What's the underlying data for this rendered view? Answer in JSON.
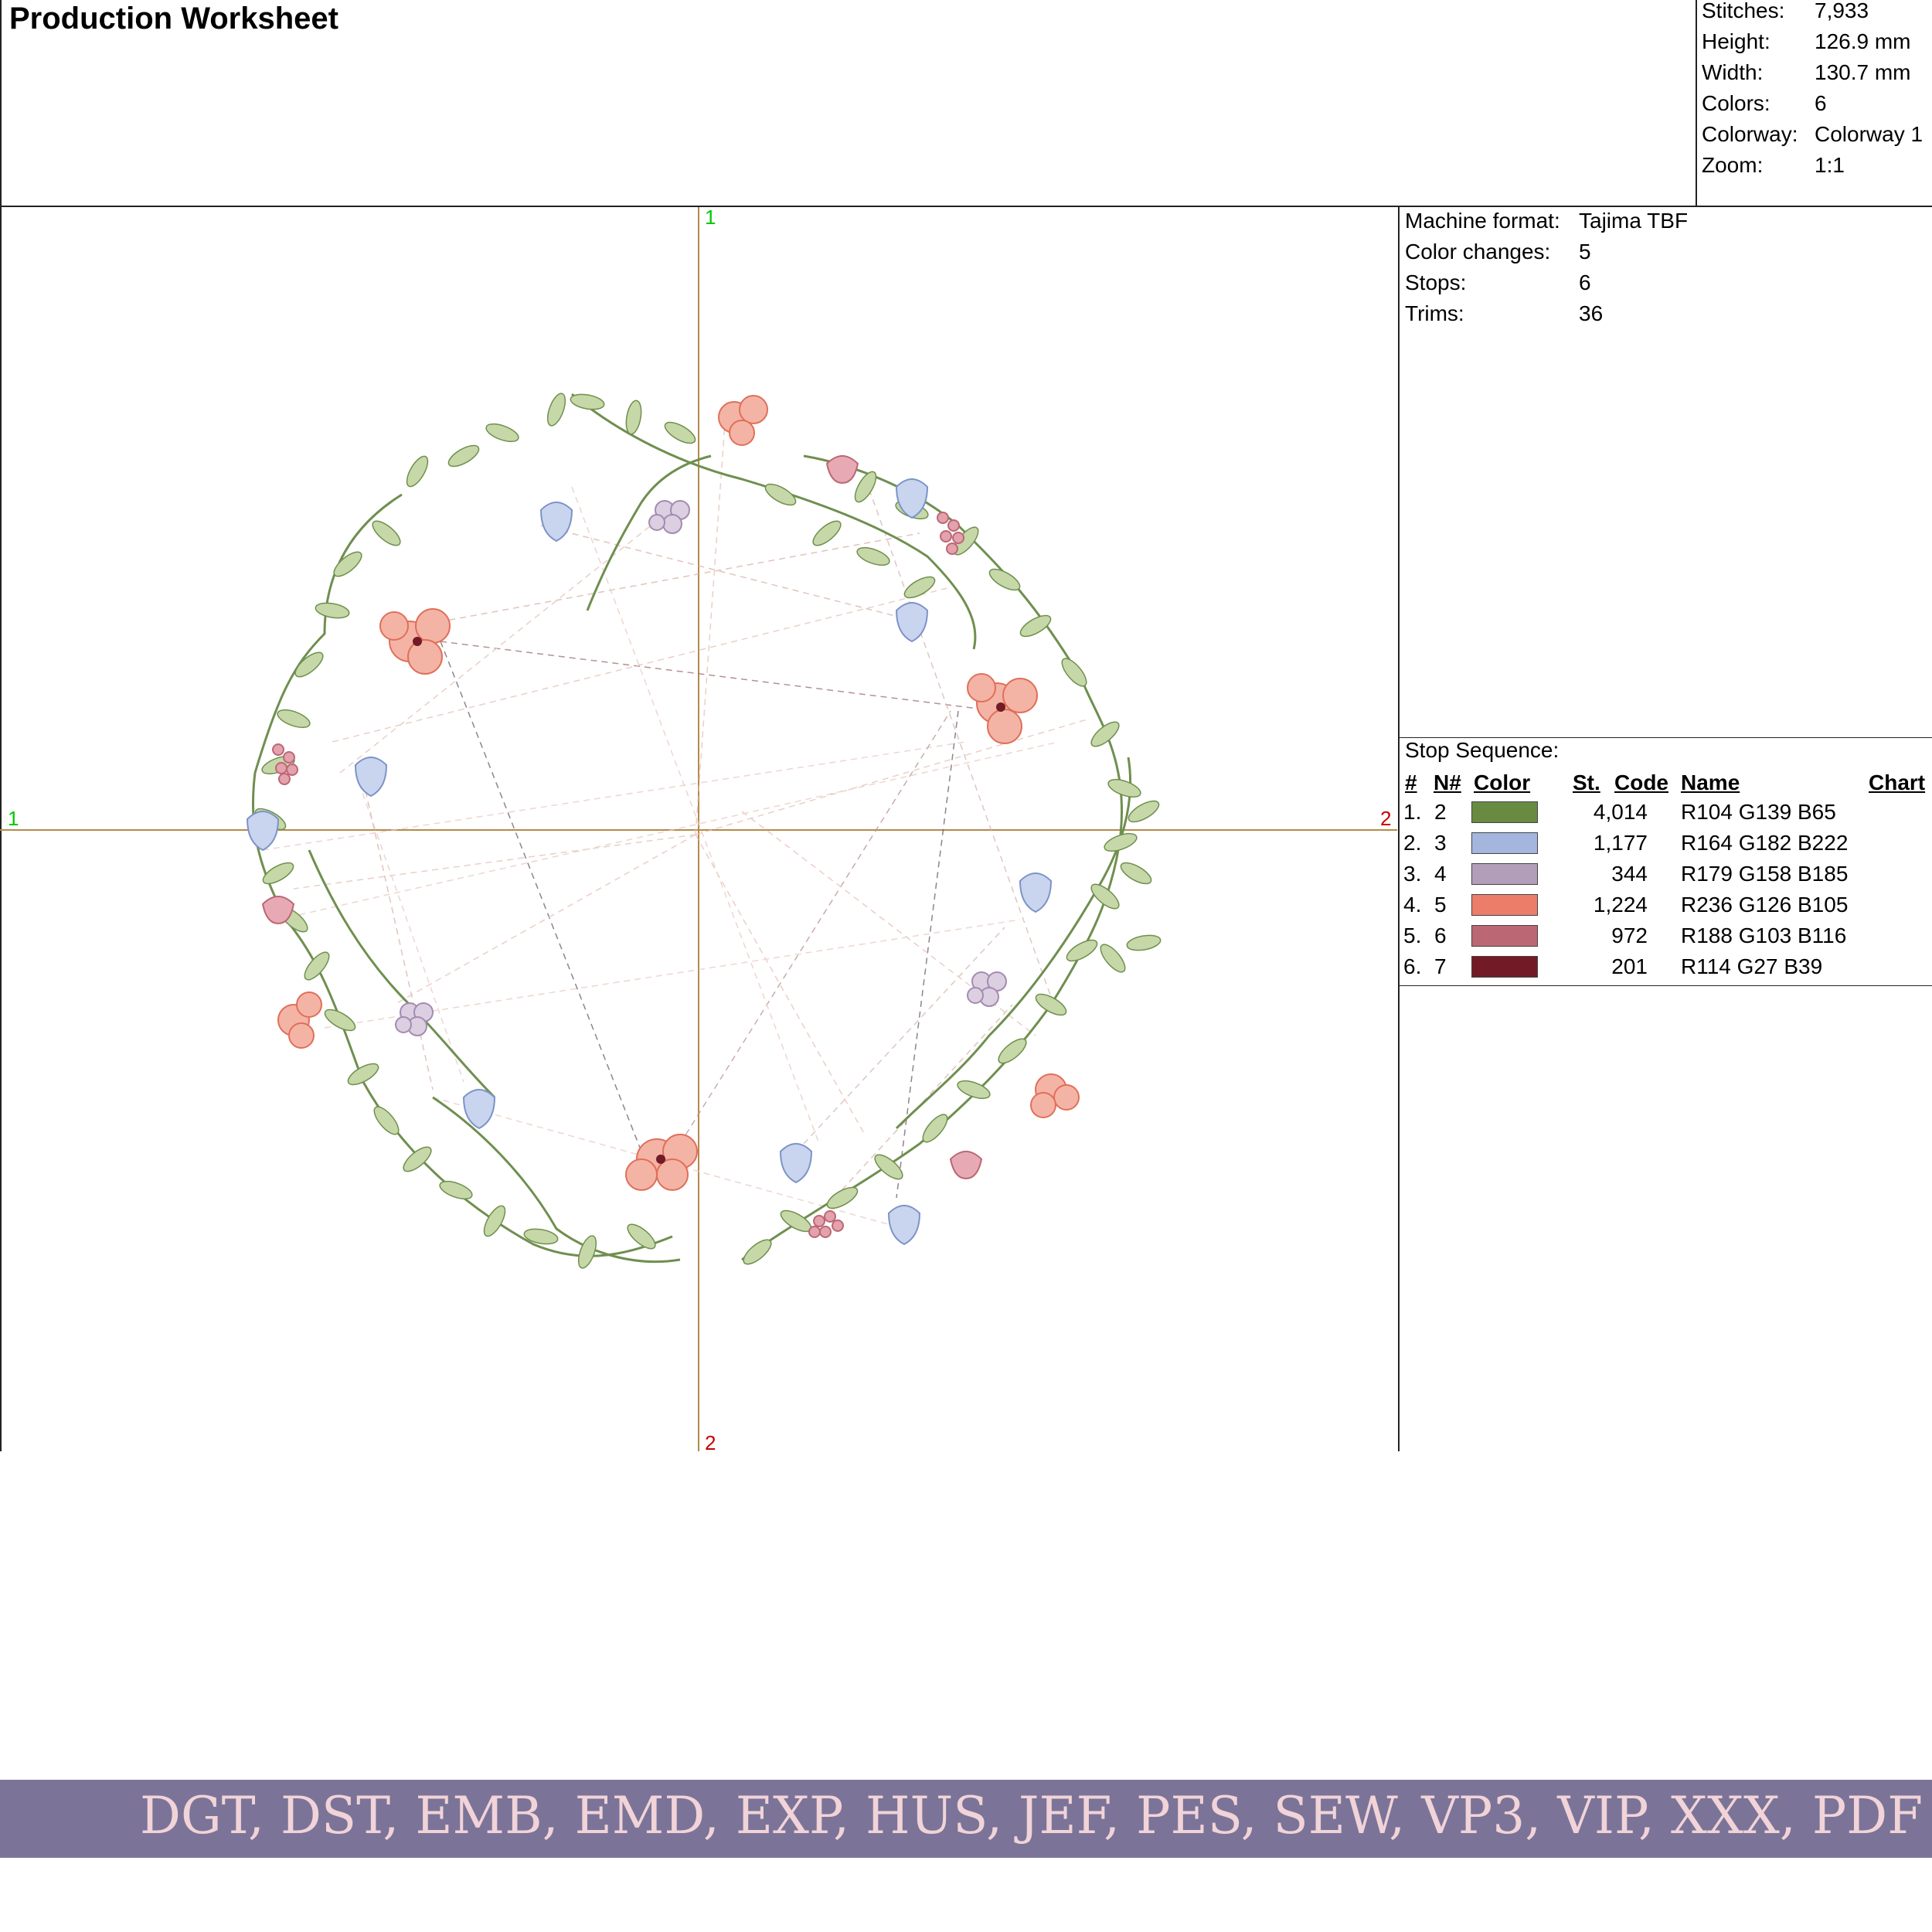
{
  "header": {
    "title": "Production Worksheet"
  },
  "stats": [
    {
      "label": "Stitches:",
      "value": "7,933"
    },
    {
      "label": "Height:",
      "value": "126.9 mm"
    },
    {
      "label": "Width:",
      "value": "130.7 mm"
    },
    {
      "label": "Colors:",
      "value": "6"
    },
    {
      "label": "Colorway:",
      "value": "Colorway 1"
    },
    {
      "label": "Zoom:",
      "value": "1:1"
    }
  ],
  "machine": [
    {
      "label": "Machine format:",
      "value": "Tajima TBF"
    },
    {
      "label": "Color changes:",
      "value": "5"
    },
    {
      "label": "Stops:",
      "value": "6"
    },
    {
      "label": "Trims:",
      "value": "36"
    }
  ],
  "stop_sequence": {
    "title": "Stop Sequence:",
    "headers": {
      "num": "#",
      "n_num": "N#",
      "color": "Color",
      "st": "St.",
      "code": "Code",
      "name": "Name",
      "chart": "Chart"
    },
    "rows": [
      {
        "num": "1.",
        "n": "2",
        "color": "#688b41",
        "st": "4,014",
        "code": "",
        "name": "R104 G139 B65",
        "chart": ""
      },
      {
        "num": "2.",
        "n": "3",
        "color": "#a4b6de",
        "st": "1,177",
        "code": "",
        "name": "R164 G182 B222",
        "chart": ""
      },
      {
        "num": "3.",
        "n": "4",
        "color": "#b39eb9",
        "st": "344",
        "code": "",
        "name": "R179 G158 B185",
        "chart": ""
      },
      {
        "num": "4.",
        "n": "5",
        "color": "#ec7e69",
        "st": "1,224",
        "code": "",
        "name": "R236 G126 B105",
        "chart": ""
      },
      {
        "num": "5.",
        "n": "6",
        "color": "#bc6774",
        "st": "972",
        "code": "",
        "name": "R188 G103 B116",
        "chart": ""
      },
      {
        "num": "6.",
        "n": "7",
        "color": "#721b27",
        "st": "201",
        "code": "",
        "name": "R114 G27 B39",
        "chart": ""
      }
    ]
  },
  "design_axes": {
    "top_label": "1",
    "bottom_label": "2",
    "left_label": "1",
    "right_label": "2",
    "start_color": "#00c800",
    "end_color": "#c80000"
  },
  "banner": {
    "formats": "DGT, DST, EMB, EMD, EXP, HUS, JEF, PES, SEW, VP3, VIP, XXX, PDF"
  }
}
